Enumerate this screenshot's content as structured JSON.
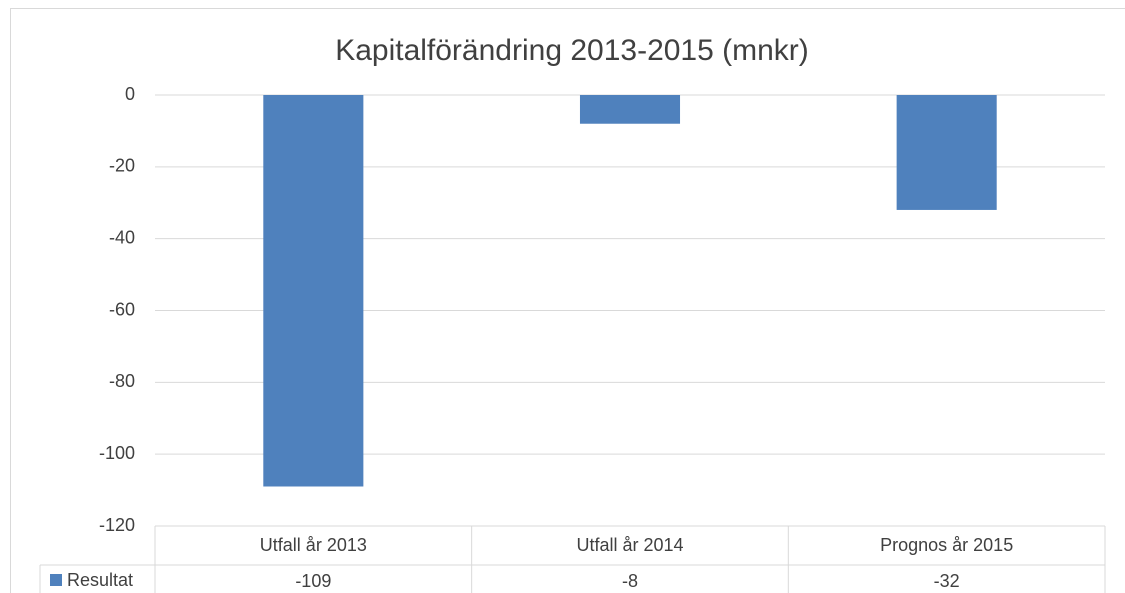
{
  "chart_data": {
    "type": "bar",
    "title": "Kapitalförändring 2013-2015 (mnkr)",
    "categories": [
      "Utfall år 2013",
      "Utfall år 2014",
      "Prognos år 2015"
    ],
    "series": [
      {
        "name": "Resultat",
        "color": "#4f81bd",
        "values": [
          -109,
          -8,
          -32
        ]
      }
    ],
    "ylim": [
      -120,
      0
    ],
    "yticks": [
      0,
      -20,
      -40,
      -60,
      -80,
      -100,
      -120
    ],
    "grid": true
  }
}
